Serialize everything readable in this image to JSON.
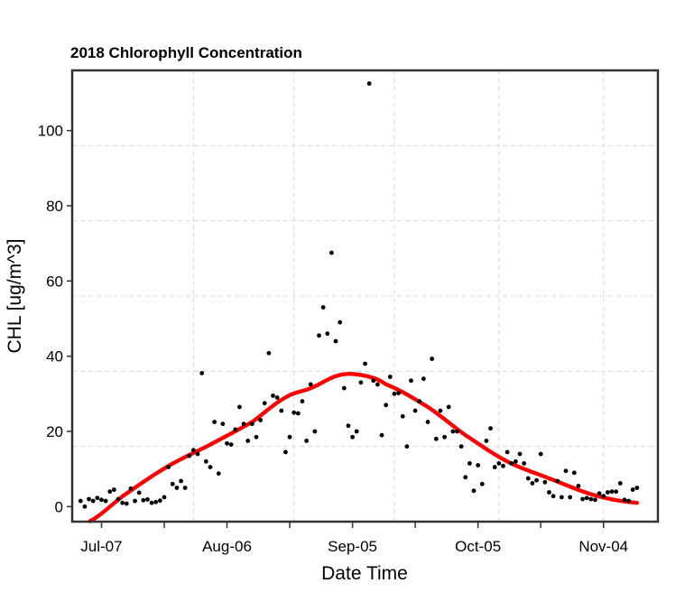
{
  "chart_data": {
    "type": "scatter",
    "title": "2018 Chlorophyll Concentration",
    "xlabel": "Date Time",
    "ylabel": "CHL [ug/m^3]",
    "xlim": [
      "2018-06-30",
      "2018-11-17"
    ],
    "ylim": [
      -4,
      116
    ],
    "x_major_ticks": [
      {
        "date": "2018-07-07",
        "label": "Jul-07"
      },
      {
        "date": "2018-08-06",
        "label": "Aug-06"
      },
      {
        "date": "2018-09-05",
        "label": "Sep-05"
      },
      {
        "date": "2018-10-05",
        "label": "Oct-05"
      },
      {
        "date": "2018-11-04",
        "label": "Nov-04"
      }
    ],
    "x_minor_ticks": [
      "2018-07-22",
      "2018-08-21",
      "2018-09-20",
      "2018-10-20"
    ],
    "x_grid": [
      "2018-07-29",
      "2018-08-22",
      "2018-09-15",
      "2018-10-10",
      "2018-11-04"
    ],
    "y_ticks": [
      0,
      20,
      40,
      60,
      80,
      100
    ],
    "y_grid": [
      16,
      36,
      56,
      76,
      96
    ],
    "grid": true,
    "series": [
      {
        "kind": "observed",
        "color": "#000000",
        "points": [
          [
            "2018-07-02",
            1.5
          ],
          [
            "2018-07-03",
            0
          ],
          [
            "2018-07-04",
            2
          ],
          [
            "2018-07-05",
            1.5
          ],
          [
            "2018-07-06",
            2.3
          ],
          [
            "2018-07-07",
            1.8
          ],
          [
            "2018-07-08",
            1.5
          ],
          [
            "2018-07-09",
            4
          ],
          [
            "2018-07-10",
            4.5
          ],
          [
            "2018-07-11",
            2
          ],
          [
            "2018-07-12",
            1
          ],
          [
            "2018-07-13",
            0.8
          ],
          [
            "2018-07-14",
            4.8
          ],
          [
            "2018-07-15",
            1.5
          ],
          [
            "2018-07-16",
            3.7
          ],
          [
            "2018-07-17",
            1.7
          ],
          [
            "2018-07-18",
            1.9
          ],
          [
            "2018-07-19",
            1
          ],
          [
            "2018-07-20",
            1.2
          ],
          [
            "2018-07-21",
            1.6
          ],
          [
            "2018-07-22",
            2.5
          ],
          [
            "2018-07-23",
            10.5
          ],
          [
            "2018-07-24",
            6
          ],
          [
            "2018-07-25",
            5
          ],
          [
            "2018-07-26",
            6.8
          ],
          [
            "2018-07-27",
            5
          ],
          [
            "2018-07-28",
            13.5
          ],
          [
            "2018-07-29",
            15
          ],
          [
            "2018-07-30",
            14
          ],
          [
            "2018-07-31",
            35.5
          ],
          [
            "2018-08-01",
            12
          ],
          [
            "2018-08-02",
            10.5
          ],
          [
            "2018-08-03",
            22.5
          ],
          [
            "2018-08-04",
            8.8
          ],
          [
            "2018-08-05",
            22
          ],
          [
            "2018-08-06",
            16.8
          ],
          [
            "2018-08-07",
            16.5
          ],
          [
            "2018-08-08",
            20.5
          ],
          [
            "2018-08-09",
            26.5
          ],
          [
            "2018-08-10",
            22
          ],
          [
            "2018-08-11",
            17.5
          ],
          [
            "2018-08-12",
            22
          ],
          [
            "2018-08-13",
            18.5
          ],
          [
            "2018-08-14",
            23
          ],
          [
            "2018-08-15",
            27.5
          ],
          [
            "2018-08-16",
            40.8
          ],
          [
            "2018-08-17",
            29.5
          ],
          [
            "2018-08-18",
            29
          ],
          [
            "2018-08-19",
            25.5
          ],
          [
            "2018-08-20",
            14.5
          ],
          [
            "2018-08-21",
            18.5
          ],
          [
            "2018-08-22",
            25
          ],
          [
            "2018-08-23",
            24.8
          ],
          [
            "2018-08-24",
            28
          ],
          [
            "2018-08-25",
            17.5
          ],
          [
            "2018-08-26",
            32.5
          ],
          [
            "2018-08-27",
            20
          ],
          [
            "2018-08-28",
            45.5
          ],
          [
            "2018-08-29",
            53
          ],
          [
            "2018-08-30",
            46
          ],
          [
            "2018-08-31",
            67.5
          ],
          [
            "2018-09-01",
            44
          ],
          [
            "2018-09-02",
            49
          ],
          [
            "2018-09-03",
            31.5
          ],
          [
            "2018-09-04",
            21.5
          ],
          [
            "2018-09-05",
            18.5
          ],
          [
            "2018-09-06",
            20
          ],
          [
            "2018-09-07",
            33
          ],
          [
            "2018-09-08",
            38
          ],
          [
            "2018-09-09",
            112.5
          ],
          [
            "2018-09-10",
            33.5
          ],
          [
            "2018-09-11",
            32.5
          ],
          [
            "2018-09-12",
            19
          ],
          [
            "2018-09-13",
            27
          ],
          [
            "2018-09-14",
            34.5
          ],
          [
            "2018-09-15",
            30
          ],
          [
            "2018-09-16",
            30.2
          ],
          [
            "2018-09-17",
            24
          ],
          [
            "2018-09-18",
            16
          ],
          [
            "2018-09-19",
            33.5
          ],
          [
            "2018-09-20",
            25.5
          ],
          [
            "2018-09-21",
            28
          ],
          [
            "2018-09-22",
            34
          ],
          [
            "2018-09-23",
            22.5
          ],
          [
            "2018-09-24",
            39.3
          ],
          [
            "2018-09-25",
            18
          ],
          [
            "2018-09-26",
            25.5
          ],
          [
            "2018-09-27",
            18.5
          ],
          [
            "2018-09-28",
            26.5
          ],
          [
            "2018-09-29",
            20
          ],
          [
            "2018-09-30",
            20
          ],
          [
            "2018-10-01",
            16
          ],
          [
            "2018-10-02",
            7.8
          ],
          [
            "2018-10-03",
            11.5
          ],
          [
            "2018-10-04",
            4.2
          ],
          [
            "2018-10-05",
            11
          ],
          [
            "2018-10-06",
            6
          ],
          [
            "2018-10-07",
            17.5
          ],
          [
            "2018-10-08",
            20.8
          ],
          [
            "2018-10-09",
            10.5
          ],
          [
            "2018-10-10",
            11.5
          ],
          [
            "2018-10-11",
            10.8
          ],
          [
            "2018-10-12",
            14.5
          ],
          [
            "2018-10-13",
            11.5
          ],
          [
            "2018-10-14",
            12
          ],
          [
            "2018-10-15",
            14
          ],
          [
            "2018-10-16",
            11.5
          ],
          [
            "2018-10-17",
            7.5
          ],
          [
            "2018-10-18",
            6.2
          ],
          [
            "2018-10-19",
            7
          ],
          [
            "2018-10-20",
            14
          ],
          [
            "2018-10-21",
            6.5
          ],
          [
            "2018-10-22",
            3.8
          ],
          [
            "2018-10-23",
            2.8
          ],
          [
            "2018-10-24",
            6.8
          ],
          [
            "2018-10-25",
            2.5
          ],
          [
            "2018-10-26",
            9.5
          ],
          [
            "2018-10-27",
            2.5
          ],
          [
            "2018-10-28",
            9
          ],
          [
            "2018-10-29",
            5.5
          ],
          [
            "2018-10-30",
            2
          ],
          [
            "2018-10-31",
            2.3
          ],
          [
            "2018-11-01",
            2
          ],
          [
            "2018-11-02",
            1.8
          ],
          [
            "2018-11-03",
            3.5
          ],
          [
            "2018-11-04",
            2.8
          ],
          [
            "2018-11-05",
            3.8
          ],
          [
            "2018-11-06",
            4
          ],
          [
            "2018-11-07",
            4
          ],
          [
            "2018-11-08",
            6.2
          ],
          [
            "2018-11-09",
            1.8
          ],
          [
            "2018-11-10",
            1.5
          ],
          [
            "2018-11-11",
            4.5
          ],
          [
            "2018-11-12",
            5
          ]
        ]
      },
      {
        "kind": "fitted",
        "color": "#ff0000",
        "points": [
          [
            "2018-07-03",
            -4.5
          ],
          [
            "2018-07-13",
            3.5
          ],
          [
            "2018-07-23",
            10.8
          ],
          [
            "2018-08-02",
            16.5
          ],
          [
            "2018-08-12",
            22.5
          ],
          [
            "2018-08-20",
            29
          ],
          [
            "2018-08-26",
            31.5
          ],
          [
            "2018-09-02",
            35
          ],
          [
            "2018-09-08",
            34.8
          ],
          [
            "2018-09-13",
            32.5
          ],
          [
            "2018-09-23",
            26.5
          ],
          [
            "2018-10-02",
            19
          ],
          [
            "2018-10-12",
            12
          ],
          [
            "2018-10-22",
            7.5
          ],
          [
            "2018-11-02",
            3
          ],
          [
            "2018-11-12",
            1
          ]
        ]
      }
    ]
  }
}
